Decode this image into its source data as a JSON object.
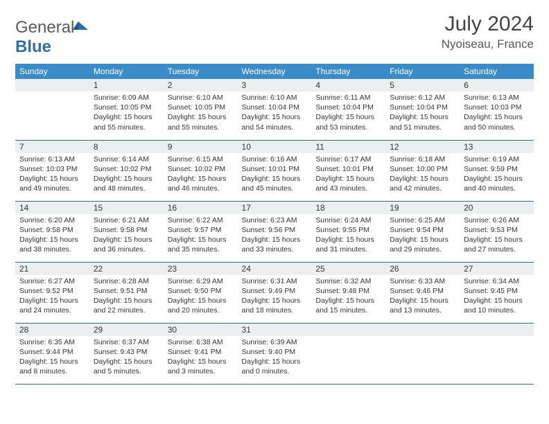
{
  "logo": {
    "textA": "General",
    "textB": "Blue"
  },
  "title": "July 2024",
  "location": "Nyoiseau, France",
  "header_bg": "#3b8bc8",
  "rule_color": "#2b6ca3",
  "daybar_bg": "#eceef0",
  "weekdays": [
    "Sunday",
    "Monday",
    "Tuesday",
    "Wednesday",
    "Thursday",
    "Friday",
    "Saturday"
  ],
  "start_offset": 1,
  "days": [
    {
      "n": 1,
      "sr": "6:09 AM",
      "ss": "10:05 PM",
      "dl": "15 hours and 55 minutes."
    },
    {
      "n": 2,
      "sr": "6:10 AM",
      "ss": "10:05 PM",
      "dl": "15 hours and 55 minutes."
    },
    {
      "n": 3,
      "sr": "6:10 AM",
      "ss": "10:04 PM",
      "dl": "15 hours and 54 minutes."
    },
    {
      "n": 4,
      "sr": "6:11 AM",
      "ss": "10:04 PM",
      "dl": "15 hours and 53 minutes."
    },
    {
      "n": 5,
      "sr": "6:12 AM",
      "ss": "10:04 PM",
      "dl": "15 hours and 51 minutes."
    },
    {
      "n": 6,
      "sr": "6:13 AM",
      "ss": "10:03 PM",
      "dl": "15 hours and 50 minutes."
    },
    {
      "n": 7,
      "sr": "6:13 AM",
      "ss": "10:03 PM",
      "dl": "15 hours and 49 minutes."
    },
    {
      "n": 8,
      "sr": "6:14 AM",
      "ss": "10:02 PM",
      "dl": "15 hours and 48 minutes."
    },
    {
      "n": 9,
      "sr": "6:15 AM",
      "ss": "10:02 PM",
      "dl": "15 hours and 46 minutes."
    },
    {
      "n": 10,
      "sr": "6:16 AM",
      "ss": "10:01 PM",
      "dl": "15 hours and 45 minutes."
    },
    {
      "n": 11,
      "sr": "6:17 AM",
      "ss": "10:01 PM",
      "dl": "15 hours and 43 minutes."
    },
    {
      "n": 12,
      "sr": "6:18 AM",
      "ss": "10:00 PM",
      "dl": "15 hours and 42 minutes."
    },
    {
      "n": 13,
      "sr": "6:19 AM",
      "ss": "9:59 PM",
      "dl": "15 hours and 40 minutes."
    },
    {
      "n": 14,
      "sr": "6:20 AM",
      "ss": "9:58 PM",
      "dl": "15 hours and 38 minutes."
    },
    {
      "n": 15,
      "sr": "6:21 AM",
      "ss": "9:58 PM",
      "dl": "15 hours and 36 minutes."
    },
    {
      "n": 16,
      "sr": "6:22 AM",
      "ss": "9:57 PM",
      "dl": "15 hours and 35 minutes."
    },
    {
      "n": 17,
      "sr": "6:23 AM",
      "ss": "9:56 PM",
      "dl": "15 hours and 33 minutes."
    },
    {
      "n": 18,
      "sr": "6:24 AM",
      "ss": "9:55 PM",
      "dl": "15 hours and 31 minutes."
    },
    {
      "n": 19,
      "sr": "6:25 AM",
      "ss": "9:54 PM",
      "dl": "15 hours and 29 minutes."
    },
    {
      "n": 20,
      "sr": "6:26 AM",
      "ss": "9:53 PM",
      "dl": "15 hours and 27 minutes."
    },
    {
      "n": 21,
      "sr": "6:27 AM",
      "ss": "9:52 PM",
      "dl": "15 hours and 24 minutes."
    },
    {
      "n": 22,
      "sr": "6:28 AM",
      "ss": "9:51 PM",
      "dl": "15 hours and 22 minutes."
    },
    {
      "n": 23,
      "sr": "6:29 AM",
      "ss": "9:50 PM",
      "dl": "15 hours and 20 minutes."
    },
    {
      "n": 24,
      "sr": "6:31 AM",
      "ss": "9:49 PM",
      "dl": "15 hours and 18 minutes."
    },
    {
      "n": 25,
      "sr": "6:32 AM",
      "ss": "9:48 PM",
      "dl": "15 hours and 15 minutes."
    },
    {
      "n": 26,
      "sr": "6:33 AM",
      "ss": "9:46 PM",
      "dl": "15 hours and 13 minutes."
    },
    {
      "n": 27,
      "sr": "6:34 AM",
      "ss": "9:45 PM",
      "dl": "15 hours and 10 minutes."
    },
    {
      "n": 28,
      "sr": "6:35 AM",
      "ss": "9:44 PM",
      "dl": "15 hours and 8 minutes."
    },
    {
      "n": 29,
      "sr": "6:37 AM",
      "ss": "9:43 PM",
      "dl": "15 hours and 5 minutes."
    },
    {
      "n": 30,
      "sr": "6:38 AM",
      "ss": "9:41 PM",
      "dl": "15 hours and 3 minutes."
    },
    {
      "n": 31,
      "sr": "6:39 AM",
      "ss": "9:40 PM",
      "dl": "15 hours and 0 minutes."
    }
  ],
  "labels": {
    "sunrise": "Sunrise:",
    "sunset": "Sunset:",
    "daylight": "Daylight:"
  }
}
